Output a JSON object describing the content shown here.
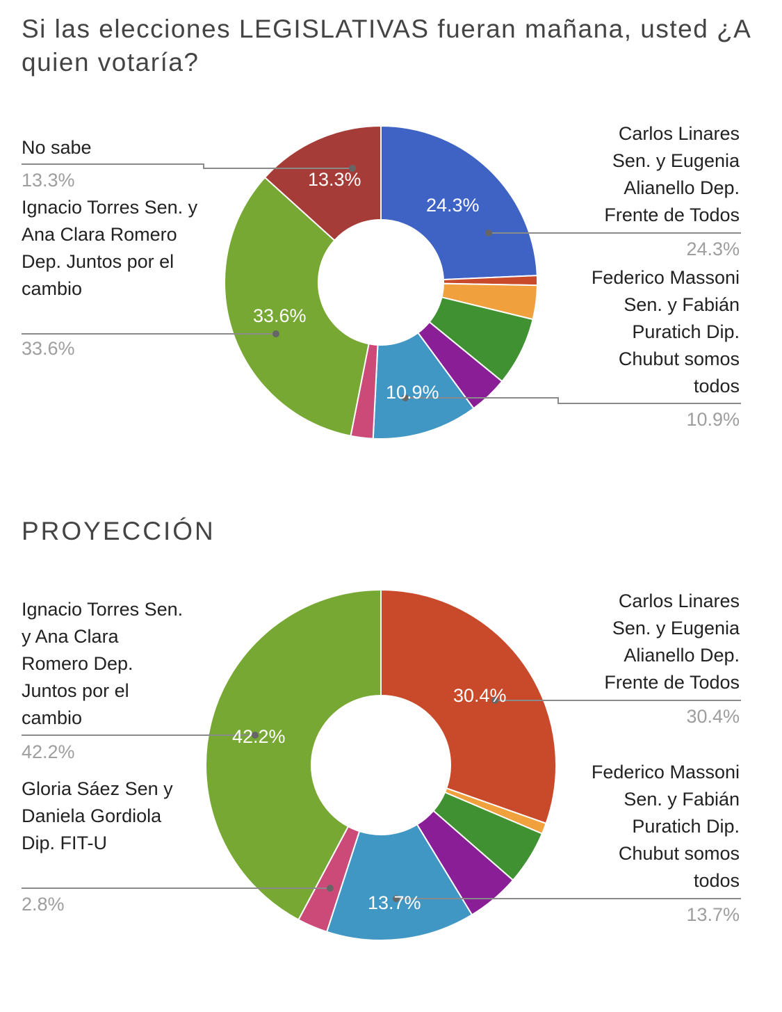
{
  "chart_data": [
    {
      "type": "donut",
      "title": "Si las elecciones LEGISLATIVAS fueran mañana, usted ¿A quien votaría?",
      "slices": [
        {
          "label": "Carlos Linares Sen. y Eugenia Alianello Dep. Frente de Todos",
          "value": 24.3,
          "color": "#3f63c4",
          "display": "24.3%"
        },
        {
          "label": "",
          "value": 1.0,
          "color": "#c94a2a"
        },
        {
          "label": "",
          "value": 3.5,
          "color": "#f0a03c"
        },
        {
          "label": "",
          "value": 7.1,
          "color": "#3f9132"
        },
        {
          "label": "",
          "value": 4.0,
          "color": "#8a1e96"
        },
        {
          "label": "Federico Massoni Sen. y Fabián Puratich Dip. Chubut somos todos",
          "value": 10.9,
          "color": "#4197c4",
          "display": "10.9%"
        },
        {
          "label": "",
          "value": 2.3,
          "color": "#cc4a78"
        },
        {
          "label": "Ignacio Torres Sen. y Ana Clara Romero Dep. Juntos por el cambio",
          "value": 33.6,
          "color": "#77a833",
          "display": "33.6%"
        },
        {
          "label": "No sabe",
          "value": 13.3,
          "color": "#a63c38",
          "display": "13.3%"
        }
      ]
    },
    {
      "type": "donut",
      "title": "PROYECCIÓN",
      "slices": [
        {
          "label": "Carlos Linares Sen. y Eugenia Alianello Dep. Frente de Todos",
          "value": 30.4,
          "color": "#c94a2a",
          "display": "30.4%"
        },
        {
          "label": "",
          "value": 1.0,
          "color": "#f0a03c"
        },
        {
          "label": "",
          "value": 5.0,
          "color": "#3f9132"
        },
        {
          "label": "",
          "value": 4.9,
          "color": "#8a1e96"
        },
        {
          "label": "Federico Massoni Sen. y Fabián Puratich Dip. Chubut somos todos",
          "value": 13.7,
          "color": "#4197c4",
          "display": "13.7%"
        },
        {
          "label": "Gloria Sáez Sen y Daniela Gordiola Dip. FIT-U",
          "value": 2.8,
          "color": "#cc4a78",
          "display": "2.8%"
        },
        {
          "label": "Ignacio Torres Sen. y Ana Clara Romero Dep. Juntos por el cambio",
          "value": 42.2,
          "color": "#77a833",
          "display": "42.2%"
        }
      ]
    }
  ]
}
